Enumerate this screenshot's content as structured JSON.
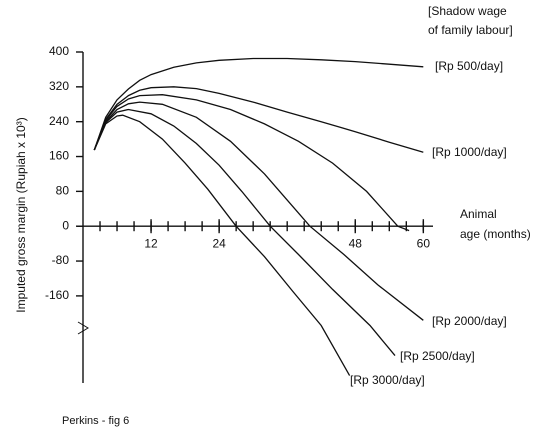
{
  "chart_data": {
    "type": "line",
    "title": [
      "[Shadow wage",
      "of family labour]"
    ],
    "x_label": [
      "Animal",
      "age (months)"
    ],
    "y_label": "Imputed gross margin (Rupiah x 10³)",
    "caption": "Perkins - fig 6",
    "xlim": [
      0,
      61
    ],
    "ylim": [
      -360,
      400
    ],
    "xticks": [
      12,
      24,
      48,
      60
    ],
    "xticks_minor": [
      3,
      6,
      9,
      12,
      15,
      18,
      21,
      24,
      27,
      30,
      33,
      36,
      39,
      42,
      45,
      48,
      51,
      54,
      57,
      60
    ],
    "yticks": [
      400,
      320,
      240,
      160,
      80,
      0,
      -80,
      -160
    ],
    "series": [
      {
        "name": "[Rp 500/day]",
        "color": "#111111",
        "x": [
          2,
          4,
          6,
          8,
          10,
          12,
          16,
          20,
          24,
          30,
          36,
          42,
          48,
          54,
          60
        ],
        "values": [
          175,
          250,
          290,
          315,
          335,
          348,
          365,
          375,
          381,
          385,
          385,
          382,
          378,
          372,
          366
        ]
      },
      {
        "name": "[Rp 1000/day]",
        "color": "#111111",
        "x": [
          2,
          4,
          6,
          8,
          10,
          12,
          16,
          20,
          24,
          30,
          36,
          42,
          48,
          54,
          60
        ],
        "values": [
          175,
          245,
          280,
          300,
          312,
          318,
          320,
          316,
          305,
          285,
          262,
          240,
          217,
          193,
          170
        ]
      },
      {
        "name": null,
        "color": "#111111",
        "x": [
          2,
          4,
          6,
          8,
          10,
          14,
          20,
          26,
          32,
          38,
          44,
          50,
          55.5,
          57.5
        ],
        "values": [
          175,
          243,
          275,
          292,
          300,
          302,
          290,
          268,
          235,
          195,
          145,
          80,
          0,
          -10
        ]
      },
      {
        "name": "[Rp 2000/day]",
        "color": "#111111",
        "x": [
          2,
          4,
          6,
          8,
          10,
          14,
          20,
          26,
          32,
          36,
          40,
          46,
          52,
          60
        ],
        "values": [
          175,
          240,
          268,
          281,
          285,
          280,
          250,
          195,
          120,
          60,
          0,
          -65,
          -135,
          -216
        ]
      },
      {
        "name": "[Rp 2500/day]",
        "color": "#111111",
        "x": [
          2,
          4,
          6,
          8,
          12,
          16,
          20,
          24,
          28,
          33,
          38,
          44,
          50.6,
          55
        ],
        "values": [
          175,
          238,
          262,
          268,
          258,
          230,
          190,
          140,
          80,
          0,
          -65,
          -145,
          -228,
          -297
        ]
      },
      {
        "name": "[Rp 3000/day]",
        "color": "#111111",
        "x": [
          2,
          4,
          6,
          7,
          10,
          14,
          18,
          22,
          27,
          32,
          37,
          42,
          47
        ],
        "values": [
          175,
          235,
          253,
          255,
          240,
          200,
          145,
          85,
          0,
          -70,
          -150,
          -228,
          -343
        ]
      }
    ]
  }
}
